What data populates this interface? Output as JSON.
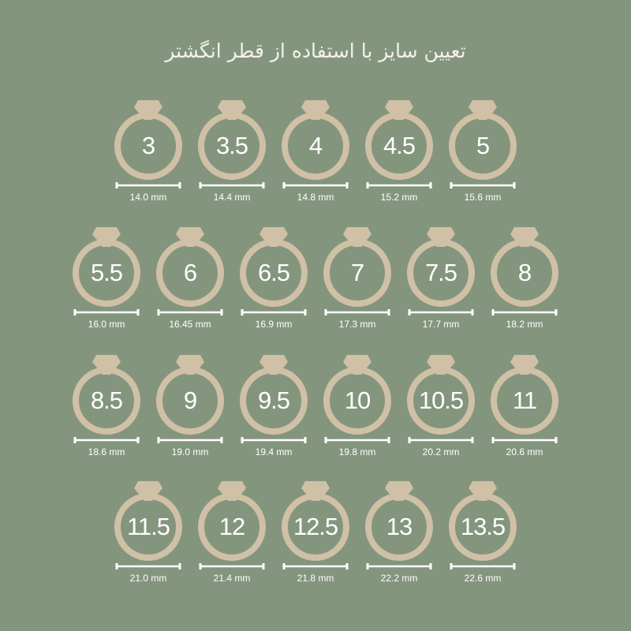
{
  "title": "تعیین سایز با استفاده از قطر انگشتر",
  "colors": {
    "background": "#84957d",
    "ring": "#cfc0a6",
    "text": "#ffffff"
  },
  "icon": "ring-icon",
  "rows": [
    [
      {
        "size": "3",
        "diameter": "14.0 mm"
      },
      {
        "size": "3.5",
        "diameter": "14.4 mm"
      },
      {
        "size": "4",
        "diameter": "14.8 mm"
      },
      {
        "size": "4.5",
        "diameter": "15.2 mm"
      },
      {
        "size": "5",
        "diameter": "15.6 mm"
      }
    ],
    [
      {
        "size": "5.5",
        "diameter": "16.0 mm"
      },
      {
        "size": "6",
        "diameter": "16.45 mm"
      },
      {
        "size": "6.5",
        "diameter": "16.9 mm"
      },
      {
        "size": "7",
        "diameter": "17.3 mm"
      },
      {
        "size": "7.5",
        "diameter": "17.7 mm"
      },
      {
        "size": "8",
        "diameter": "18.2 mm"
      }
    ],
    [
      {
        "size": "8.5",
        "diameter": "18.6 mm"
      },
      {
        "size": "9",
        "diameter": "19.0 mm"
      },
      {
        "size": "9.5",
        "diameter": "19.4 mm"
      },
      {
        "size": "10",
        "diameter": "19.8 mm"
      },
      {
        "size": "10.5",
        "diameter": "20.2 mm"
      },
      {
        "size": "11",
        "diameter": "20.6 mm"
      }
    ],
    [
      {
        "size": "11.5",
        "diameter": "21.0 mm"
      },
      {
        "size": "12",
        "diameter": "21.4 mm"
      },
      {
        "size": "12.5",
        "diameter": "21.8 mm"
      },
      {
        "size": "13",
        "diameter": "22.2 mm"
      },
      {
        "size": "13.5",
        "diameter": "22.6 mm"
      }
    ]
  ]
}
